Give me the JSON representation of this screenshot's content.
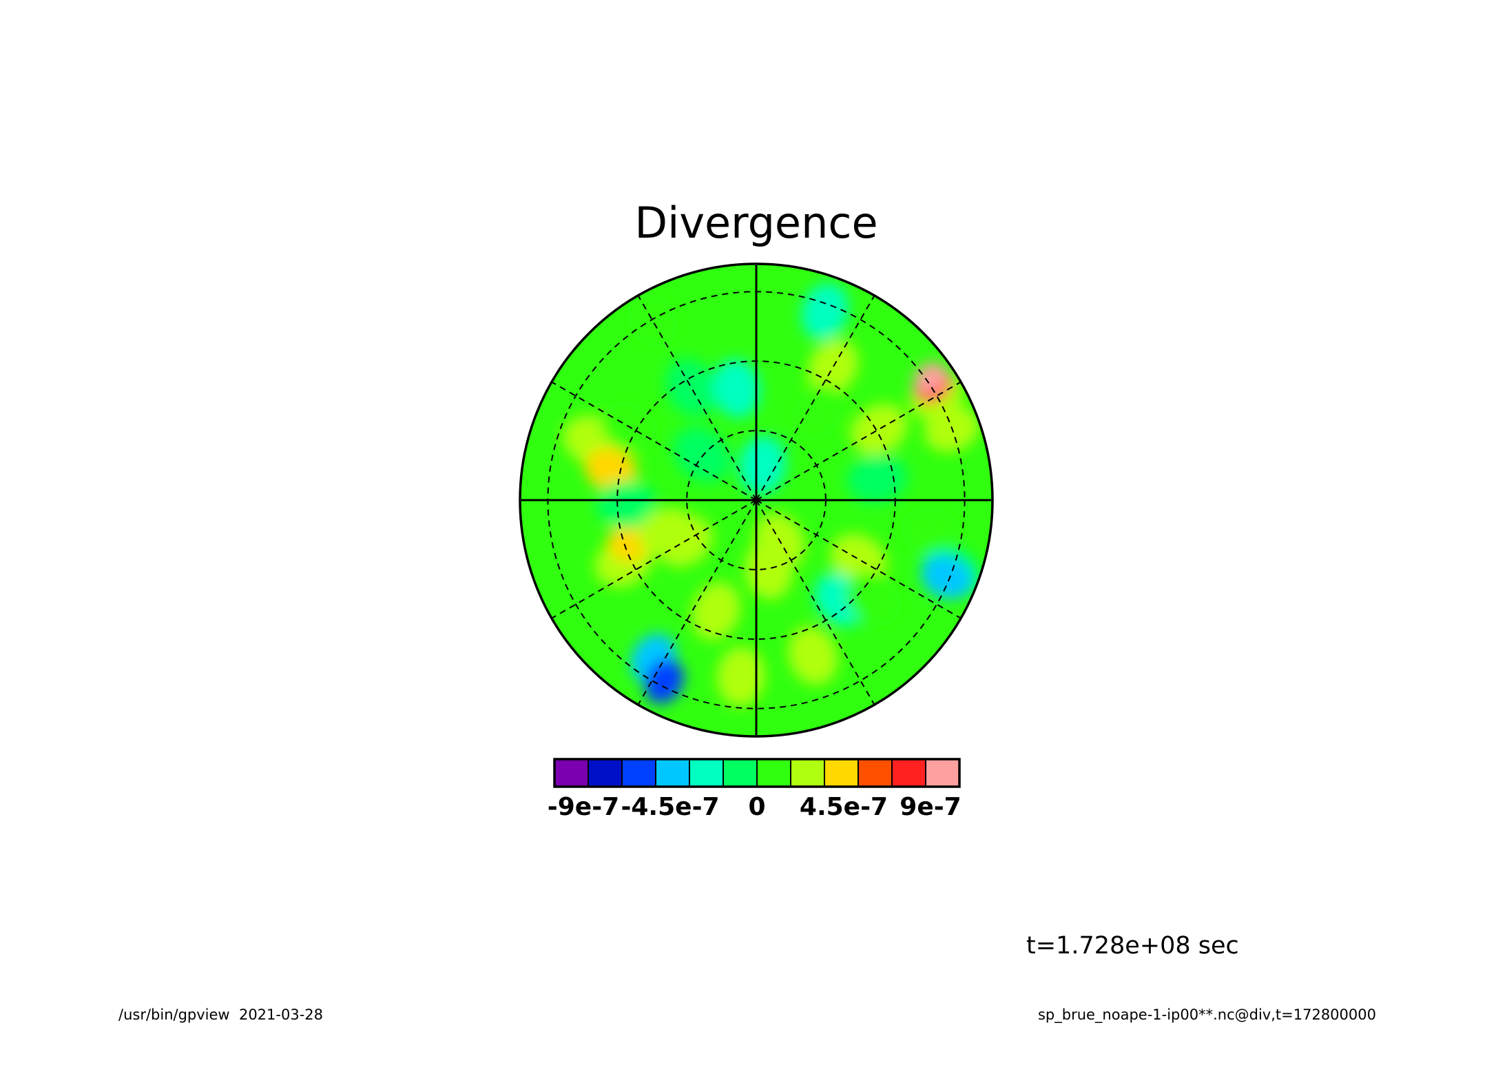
{
  "chart_data": {
    "type": "heatmap",
    "projection": "polar-stereographic",
    "title": "Divergence",
    "colorbar": {
      "colors": [
        "#7a00b0",
        "#0010c8",
        "#0040ff",
        "#00c8ff",
        "#00ffc0",
        "#00ff60",
        "#30ff10",
        "#b0ff10",
        "#ffd800",
        "#ff5000",
        "#ff2020",
        "#ffa0a0"
      ],
      "ticks": [
        -9e-07,
        -4.5e-07,
        0,
        4.5e-07,
        9e-07
      ],
      "tick_labels": [
        "-9e-7",
        "-4.5e-7",
        "0",
        "4.5e-7",
        "9e-7"
      ],
      "range": [
        -1.05e-06,
        1.05e-06
      ]
    },
    "background_value": 7.5e-08,
    "features": [
      {
        "lon": 213,
        "r": 0.8,
        "value": -4e-07
      },
      {
        "lon": 207,
        "r": 0.86,
        "value": -6e-07
      },
      {
        "lon": 290,
        "r": 0.74,
        "value": 1.8e-07
      },
      {
        "lon": 282,
        "r": 0.63,
        "value": 4e-07
      },
      {
        "lon": 300,
        "r": 0.62,
        "value": 1.6e-07
      },
      {
        "lon": 245,
        "r": 0.62,
        "value": 1.8e-07
      },
      {
        "lon": 252,
        "r": 0.55,
        "value": 4.5e-07
      },
      {
        "lon": 268,
        "r": 0.55,
        "value": -1.5e-07
      },
      {
        "lon": 250,
        "r": 0.4,
        "value": 1.8e-07
      },
      {
        "lon": 330,
        "r": 0.55,
        "value": -1.5e-07
      },
      {
        "lon": 350,
        "r": 0.48,
        "value": -2e-07
      },
      {
        "lon": 330,
        "r": 0.88,
        "value": 1.6e-07
      },
      {
        "lon": 10,
        "r": 0.15,
        "value": -2e-07
      },
      {
        "lon": 20,
        "r": 0.85,
        "value": -2.5e-07
      },
      {
        "lon": 30,
        "r": 0.65,
        "value": 2e-07
      },
      {
        "lon": 60,
        "r": 0.88,
        "value": 3e-07
      },
      {
        "lon": 57,
        "r": 0.89,
        "value": 8e-07
      },
      {
        "lon": 55,
        "r": 0.9,
        "value": 9.5e-07
      },
      {
        "lon": 70,
        "r": 0.88,
        "value": 3e-07
      },
      {
        "lon": 60,
        "r": 0.6,
        "value": 1.8e-07
      },
      {
        "lon": 80,
        "r": 0.52,
        "value": -1.5e-07
      },
      {
        "lon": 100,
        "r": 0.75,
        "value": 1.6e-07
      },
      {
        "lon": 110,
        "r": 0.88,
        "value": -1.5e-07
      },
      {
        "lon": 112,
        "r": 0.87,
        "value": -4e-07
      },
      {
        "lon": 120,
        "r": 0.5,
        "value": 1.8e-07
      },
      {
        "lon": 140,
        "r": 0.55,
        "value": -2.5e-07
      },
      {
        "lon": 150,
        "r": 0.2,
        "value": 2e-07
      },
      {
        "lon": 160,
        "r": 0.7,
        "value": 1.8e-07
      },
      {
        "lon": 170,
        "r": 0.3,
        "value": 2e-07
      },
      {
        "lon": 185,
        "r": 0.75,
        "value": 1.8e-07
      },
      {
        "lon": 200,
        "r": 0.5,
        "value": 2e-07
      },
      {
        "lon": 240,
        "r": 0.35,
        "value": 2e-07
      },
      {
        "lon": 310,
        "r": 0.3,
        "value": -1e-07
      },
      {
        "lon": 35,
        "r": 0.45,
        "value": 1.5e-07
      },
      {
        "lon": 130,
        "r": 0.65,
        "value": 1.5e-07
      }
    ],
    "grid_lines": {
      "latitude_rings": 3,
      "longitude_spokes_deg": 30
    },
    "time_label": "t=1.728e+08 sec",
    "footer_left": "/usr/bin/gpview  2021-03-28",
    "footer_right": "sp_brue_noape-1-ip00**.nc@div,t=172800000"
  }
}
